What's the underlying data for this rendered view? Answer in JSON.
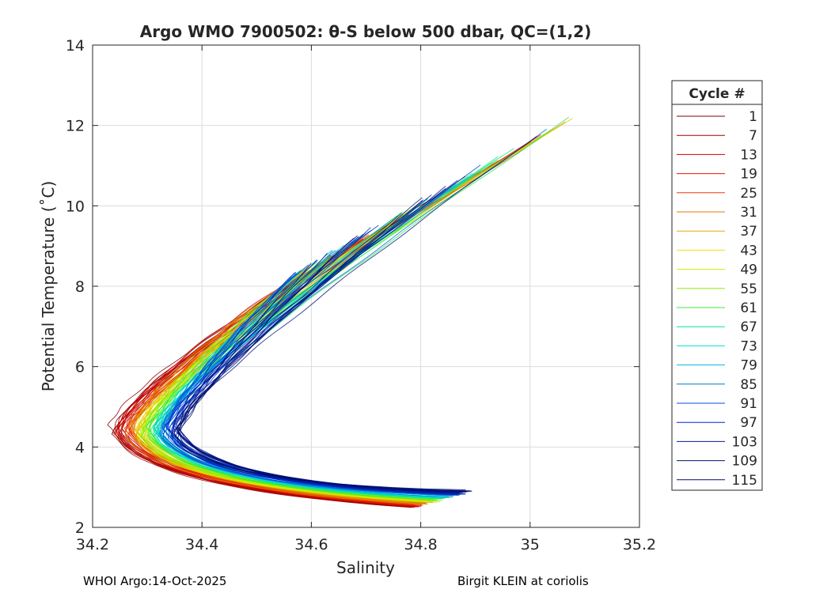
{
  "colors": {
    "grid": "#dcdcdc",
    "axis": "#262626"
  },
  "chart_data": {
    "type": "line",
    "title": "Argo WMO 7900502: θ-S below 500 dbar,  QC=(1,2)",
    "xlabel": "Salinity",
    "ylabel": "Potential Temperature (˚C)",
    "xlim": [
      34.2,
      35.2
    ],
    "ylim": [
      2,
      14
    ],
    "xticks": [
      "34.2",
      "34.4",
      "34.6",
      "34.8",
      "35",
      "35.2"
    ],
    "yticks": [
      "2",
      "4",
      "6",
      "8",
      "10",
      "12",
      "14"
    ],
    "grid": true,
    "legend": {
      "title": "Cycle #",
      "placement": "outside-right",
      "entries": [
        {
          "label": "1",
          "color": "#800000"
        },
        {
          "label": "7",
          "color": "#a00000"
        },
        {
          "label": "13",
          "color": "#c80000"
        },
        {
          "label": "19",
          "color": "#e61400"
        },
        {
          "label": "25",
          "color": "#f03c00"
        },
        {
          "label": "31",
          "color": "#e07800"
        },
        {
          "label": "37",
          "color": "#e6a800"
        },
        {
          "label": "43",
          "color": "#f0e000"
        },
        {
          "label": "49",
          "color": "#c8f000"
        },
        {
          "label": "55",
          "color": "#8cf000"
        },
        {
          "label": "61",
          "color": "#3ce83c"
        },
        {
          "label": "67",
          "color": "#00e88c"
        },
        {
          "label": "73",
          "color": "#00e0d0"
        },
        {
          "label": "79",
          "color": "#00b4e6"
        },
        {
          "label": "85",
          "color": "#007ac8"
        },
        {
          "label": "91",
          "color": "#0050e6"
        },
        {
          "label": "97",
          "color": "#0028d2"
        },
        {
          "label": "103",
          "color": "#001ea0"
        },
        {
          "label": "109",
          "color": "#00147a"
        },
        {
          "label": "115",
          "color": "#000a6e"
        }
      ]
    },
    "series_shape": {
      "top_s": [
        34.57,
        35.1
      ],
      "top_t": [
        8.3,
        12.25
      ],
      "bottom_s": [
        34.78,
        34.89
      ],
      "bottom_t": [
        2.5,
        2.9
      ],
      "nose_s_first": 34.24,
      "nose_s_last": 34.36,
      "nose_t": 4.4,
      "profiles": 115
    }
  },
  "footer": {
    "left": "WHOI Argo:14-Oct-2025",
    "right": "Birgit KLEIN at coriolis"
  }
}
